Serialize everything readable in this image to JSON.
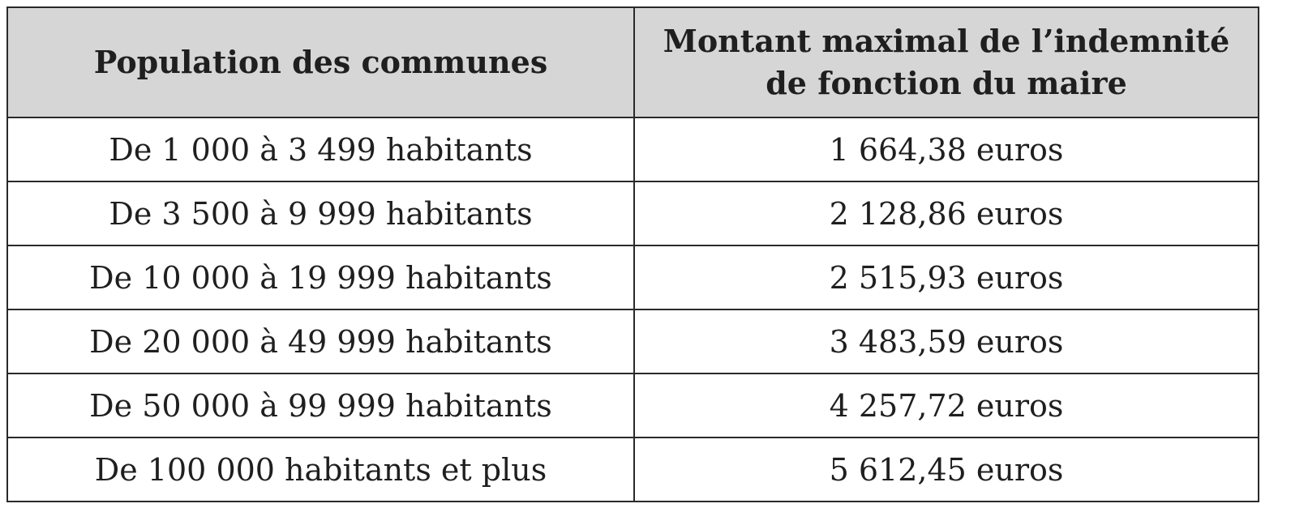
{
  "table": {
    "headers": {
      "population": "Population des communes",
      "amount_line1": "Montant maximal de l’indemnité",
      "amount_line2": "de fonction du maire"
    },
    "rows": [
      {
        "population": "De 1 000 à 3 499 habitants",
        "amount": "1 664,38 euros"
      },
      {
        "population": "De 3 500 à 9 999 habitants",
        "amount": "2 128,86 euros"
      },
      {
        "population": "De 10 000 à 19 999 habitants",
        "amount": "2 515,93 euros"
      },
      {
        "population": "De 20 000 à 49 999 habitants",
        "amount": "3 483,59 euros"
      },
      {
        "population": "De 50 000 à 99 999 habitants",
        "amount": "4 257,72 euros"
      },
      {
        "population": "De 100 000 habitants et plus",
        "amount": "5 612,45 euros"
      }
    ]
  },
  "colors": {
    "header_background": "#d6d6d6",
    "border": "#2a2a2a",
    "text": "#1f1f1f"
  }
}
